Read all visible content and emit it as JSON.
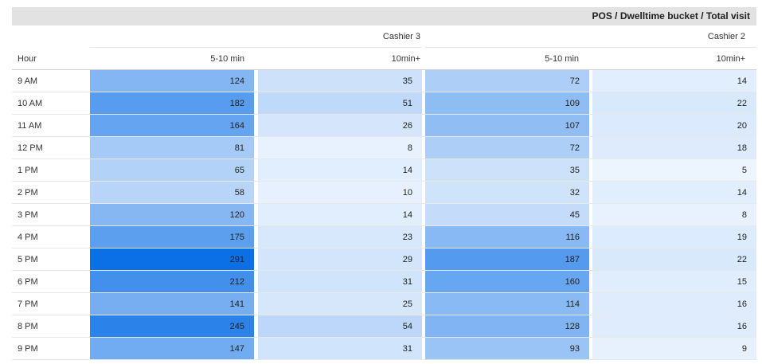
{
  "title": "POS / Dwelltime bucket / Total visit",
  "row_header": "Hour",
  "groups": [
    "Cashier 3",
    "Cashier 2"
  ],
  "buckets": [
    "5-10 min",
    "10min+"
  ],
  "colors": {
    "low": "#f3f8ff",
    "high": "#0b6fe6",
    "header_bg": "#e2e2e2"
  },
  "chart_data": {
    "type": "heatmap",
    "title": "POS / Dwelltime bucket / Total visit",
    "row_label": "Hour",
    "rows": [
      "9 AM",
      "10 AM",
      "11 AM",
      "12 PM",
      "1 PM",
      "2 PM",
      "3 PM",
      "4 PM",
      "5 PM",
      "6 PM",
      "7 PM",
      "8 PM",
      "9 PM"
    ],
    "columns": [
      {
        "group": "Cashier 3",
        "bucket": "5-10 min",
        "values": [
          124,
          182,
          164,
          81,
          65,
          58,
          120,
          175,
          291,
          212,
          141,
          245,
          147
        ]
      },
      {
        "group": "Cashier 3",
        "bucket": "10min+",
        "values": [
          35,
          51,
          26,
          8,
          14,
          10,
          14,
          23,
          29,
          31,
          25,
          54,
          31
        ]
      },
      {
        "group": "Cashier 2",
        "bucket": "5-10 min",
        "values": [
          72,
          109,
          107,
          72,
          35,
          32,
          45,
          116,
          187,
          160,
          114,
          128,
          93
        ]
      },
      {
        "group": "Cashier 2",
        "bucket": "10min+",
        "values": [
          14,
          22,
          20,
          18,
          5,
          14,
          8,
          19,
          22,
          15,
          16,
          16,
          9
        ]
      }
    ]
  }
}
